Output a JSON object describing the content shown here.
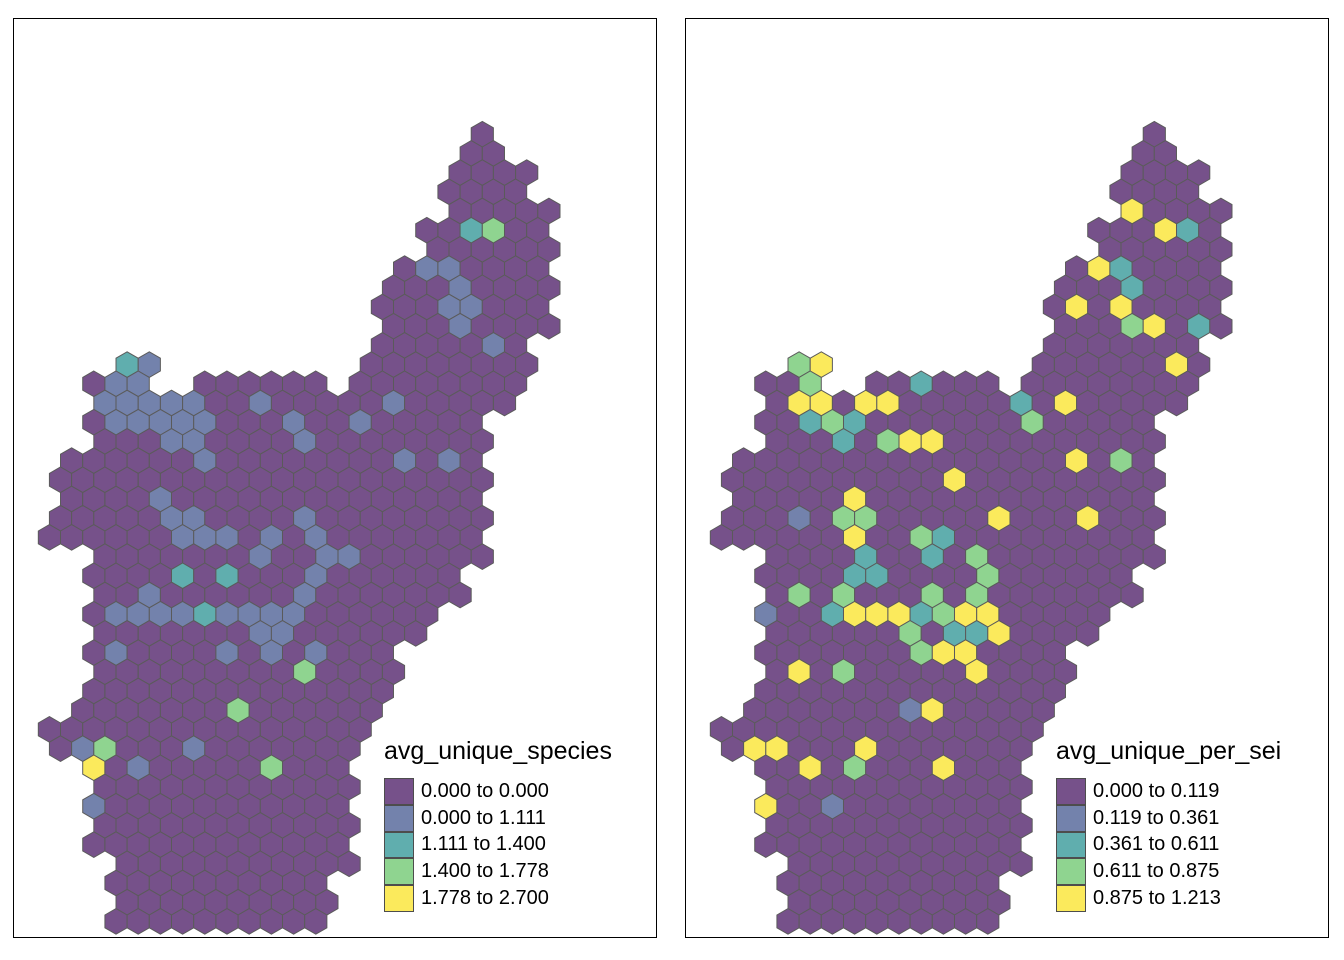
{
  "panels": [
    {
      "legend": {
        "title": "avg_unique_species",
        "items": [
          {
            "label": "0.000 to 0.000",
            "color": "#76518a"
          },
          {
            "label": "0.000 to 1.111",
            "color": "#7382ac"
          },
          {
            "label": "1.111 to 1.400",
            "color": "#60aeae"
          },
          {
            "label": "1.400 to 1.778",
            "color": "#8fd490"
          },
          {
            "label": "1.778 to 2.700",
            "color": "#fbea5c"
          }
        ]
      }
    },
    {
      "legend": {
        "title": "avg_unique_per_sei",
        "items": [
          {
            "label": "0.000 to 0.119",
            "color": "#76518a"
          },
          {
            "label": "0.119 to 0.361",
            "color": "#7382ac"
          },
          {
            "label": "0.361 to 0.611",
            "color": "#60aeae"
          },
          {
            "label": "0.611 to 0.875",
            "color": "#8fd490"
          },
          {
            "label": "0.875 to 1.213",
            "color": "#fbea5c"
          }
        ]
      }
    }
  ]
}
